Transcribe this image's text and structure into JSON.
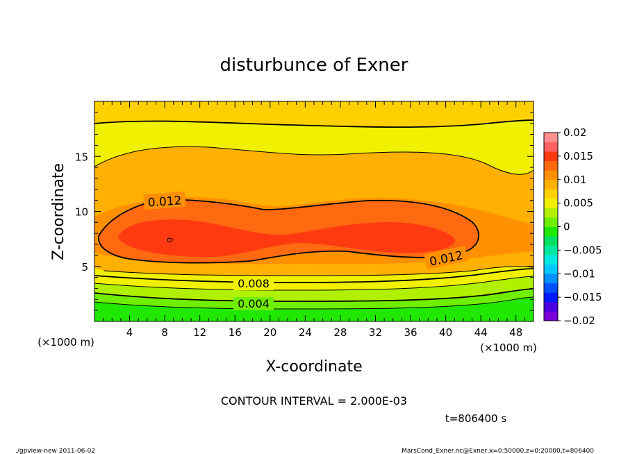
{
  "chart_data": {
    "type": "contour",
    "title": "disturbunce of Exner",
    "xlabel": "X-coordinate",
    "ylabel": "Z-coordinate",
    "x_unit": "(×1000 m)",
    "y_unit": "(×1000 m)",
    "xlim": [
      0,
      50
    ],
    "ylim": [
      0,
      20
    ],
    "x_ticks": [
      "4",
      "8",
      "12",
      "16",
      "20",
      "24",
      "28",
      "32",
      "36",
      "40",
      "44",
      "48"
    ],
    "y_ticks": [
      "5",
      "10",
      "15"
    ],
    "contour_interval_text": "CONTOUR INTERVAL = 2.000E-03",
    "time_text": "t=806400 s",
    "contour_labels": [
      "0.012",
      "0.012",
      "0.008",
      "0.004"
    ],
    "colorbar": {
      "min": -0.02,
      "max": 0.02,
      "tick_labels": [
        "0.02",
        "0.015",
        "0.01",
        "0.005",
        "0",
        "−0.005",
        "−0.01",
        "−0.015",
        "−0.02"
      ],
      "colors": [
        "#7a00d8",
        "#4a00e0",
        "#0018ff",
        "#0050ff",
        "#0090ff",
        "#00c8ff",
        "#00e8e0",
        "#00e8a0",
        "#00e060",
        "#20e800",
        "#70ee00",
        "#b0f000",
        "#f0f000",
        "#ffd000",
        "#ffb000",
        "#ff9000",
        "#ff6a10",
        "#ff3a10",
        "#ff6060",
        "#ff9090"
      ]
    },
    "field_colors": {
      "0.000": "#20e800",
      "0.002": "#70ee00",
      "0.004": "#b0f000",
      "0.006": "#f0f000",
      "0.008": "#ffd000",
      "0.010": "#ffb000",
      "0.012": "#ff9000",
      "0.014": "#ff6a10",
      "0.016": "#ff3a10"
    }
  },
  "footer": {
    "left": "./gpview-new   2011-06-02",
    "right": "MarsCond_Exner.nc@Exner,x=0:50000,z=0:20000,t=806400"
  }
}
